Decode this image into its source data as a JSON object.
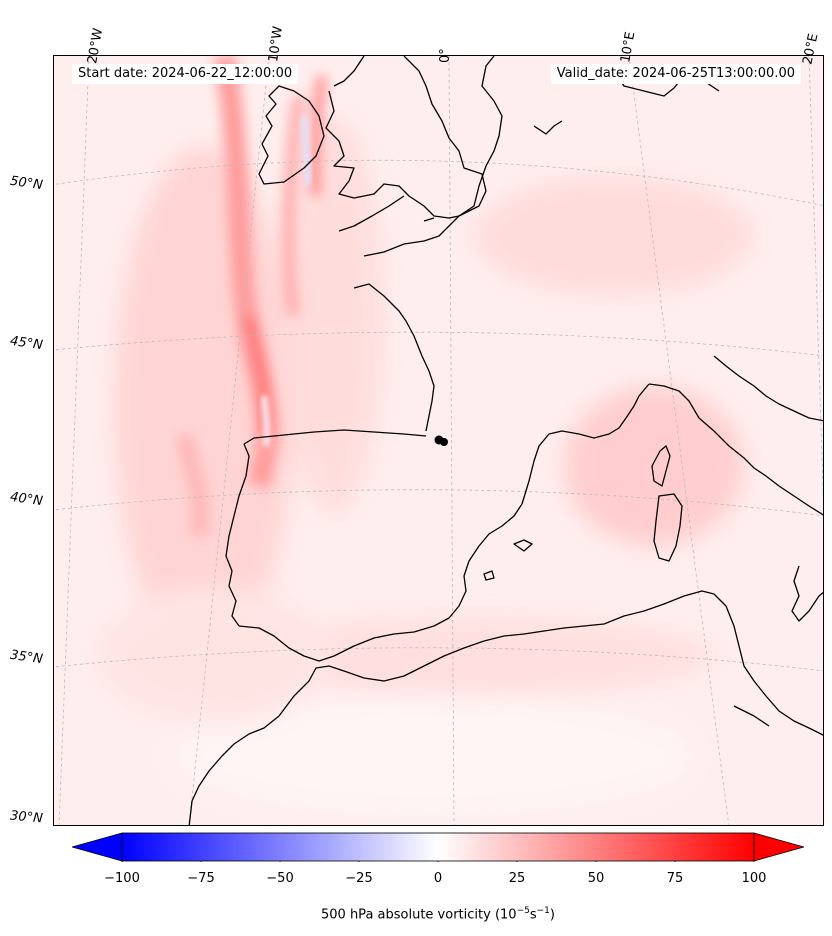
{
  "header": {
    "start_text": "Start date: 2024-06-22_12:00:00",
    "valid_text": "Valid_date: 2024-06-25T13:00:00.00"
  },
  "map": {
    "type": "contourf",
    "variable": "500 hPa absolute vorticity",
    "lon_labels": [
      "20°W",
      "10°W",
      "0°",
      "10°E",
      "20°E"
    ],
    "lat_labels": [
      "50°N",
      "45°N",
      "40°N",
      "35°N",
      "30°N"
    ],
    "gridlines": true,
    "coastlines": true,
    "marker": "black dot near 42°N, 0°"
  },
  "colorbar": {
    "cmap": "bwr",
    "vmin": -100,
    "vmax": 100,
    "extend": "both",
    "ticks": [
      "−100",
      "−75",
      "−50",
      "−25",
      "0",
      "25",
      "50",
      "75",
      "100"
    ],
    "label": "500 hPa absolute vorticity (10",
    "label_exp1": "−5",
    "label_mid": "s",
    "label_exp2": "−1",
    "label_end": ")"
  },
  "chart_data": {
    "type": "heatmap",
    "title": "",
    "xlabel": "",
    "ylabel": "",
    "colorbar_label": "500 hPa absolute vorticity (10^-5 s^-1)",
    "value_range": [
      -100,
      100
    ],
    "x_ticks": [
      "20°W",
      "10°W",
      "0°",
      "10°E",
      "20°E"
    ],
    "y_ticks": [
      "50°N",
      "45°N",
      "40°N",
      "35°N",
      "30°N"
    ]
  }
}
